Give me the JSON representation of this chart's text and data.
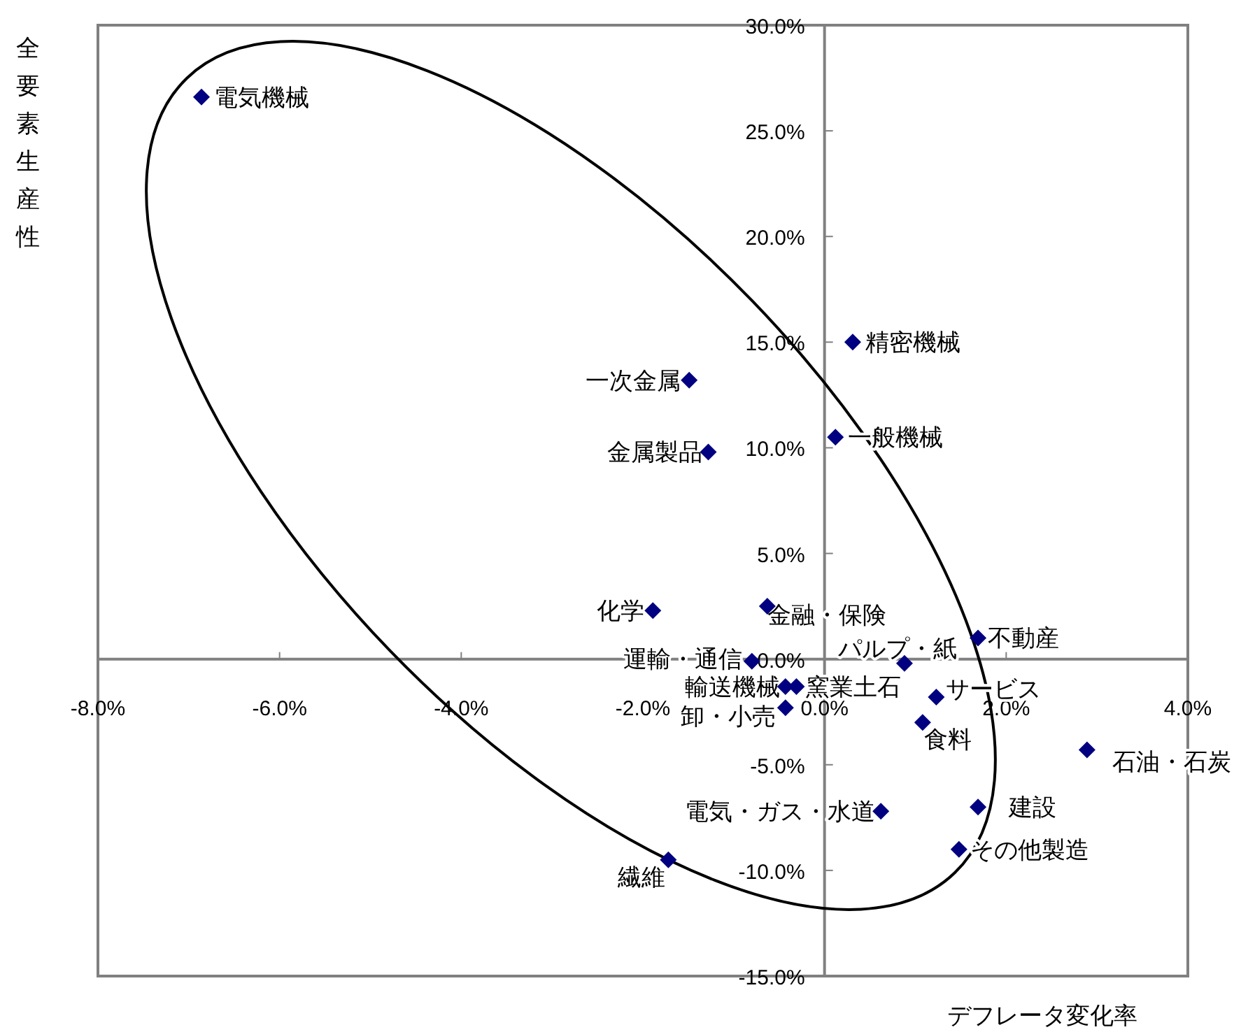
{
  "chart_data": {
    "type": "scatter",
    "xlabel": "デフレータ変化率",
    "ylabel": "全要素生産性",
    "xlim": [
      -8,
      4
    ],
    "ylim": [
      -15,
      30
    ],
    "xticks": [
      {
        "value": -8,
        "label": "-8.0%"
      },
      {
        "value": -6,
        "label": "-6.0%"
      },
      {
        "value": -4,
        "label": "-4.0%"
      },
      {
        "value": -2,
        "label": "-2.0%"
      },
      {
        "value": 0,
        "label": "0.0%"
      },
      {
        "value": 2,
        "label": "2.0%"
      },
      {
        "value": 4,
        "label": "4.0%"
      }
    ],
    "yticks": [
      {
        "value": -15,
        "label": "-15.0%"
      },
      {
        "value": -10,
        "label": "-10.0%"
      },
      {
        "value": -5,
        "label": "-5.0%"
      },
      {
        "value": 0,
        "label": "0.0%"
      },
      {
        "value": 5,
        "label": "5.0%"
      },
      {
        "value": 10,
        "label": "10.0%"
      },
      {
        "value": 15,
        "label": "15.0%"
      },
      {
        "value": 20,
        "label": "20.0%"
      },
      {
        "value": 25,
        "label": "25.0%"
      },
      {
        "value": 30,
        "label": "30.0%"
      }
    ],
    "marker": "diamond",
    "grid": false,
    "series": [
      {
        "color": "#000080",
        "x": [
          -6.86,
          -1.49,
          -1.28,
          0.31,
          0.12,
          -1.89,
          -0.63,
          1.69,
          -0.8,
          0.88,
          -0.43,
          -0.31,
          -0.43,
          1.23,
          1.08,
          2.89,
          0.62,
          1.69,
          1.48,
          -1.72
        ],
        "values": [
          26.6,
          13.2,
          9.8,
          15.0,
          10.5,
          2.3,
          2.5,
          1.0,
          -0.1,
          -0.2,
          -1.3,
          -1.3,
          -2.3,
          -1.8,
          -3.0,
          -4.3,
          -7.2,
          -7.0,
          -9.0,
          -9.5
        ]
      }
    ],
    "annotations": [
      {
        "text": "電気機械",
        "x": -6.86,
        "y": 26.6
      },
      {
        "text": "一次金属",
        "x": -1.49,
        "y": 13.2
      },
      {
        "text": "金属製品",
        "x": -1.28,
        "y": 9.8
      },
      {
        "text": "精密機械",
        "x": 0.31,
        "y": 15.0
      },
      {
        "text": "一般機械",
        "x": 0.12,
        "y": 10.5
      },
      {
        "text": "化学",
        "x": -1.89,
        "y": 2.3
      },
      {
        "text": "金融・保険",
        "x": -0.63,
        "y": 2.5
      },
      {
        "text": "不動産",
        "x": 1.69,
        "y": 1.0
      },
      {
        "text": "運輸・通信",
        "x": -0.8,
        "y": -0.1
      },
      {
        "text": "パルプ・紙",
        "x": 0.88,
        "y": -0.2
      },
      {
        "text": "輸送機械",
        "x": -0.43,
        "y": -1.3
      },
      {
        "text": "窯業土石",
        "x": -0.31,
        "y": -1.3
      },
      {
        "text": "卸・小売",
        "x": -0.43,
        "y": -2.3
      },
      {
        "text": "サービス",
        "x": 1.23,
        "y": -1.8
      },
      {
        "text": "食料",
        "x": 1.08,
        "y": -3.0
      },
      {
        "text": "石油・石炭",
        "x": 2.89,
        "y": -4.3
      },
      {
        "text": "電気・ガス・水道",
        "x": 0.62,
        "y": -7.2
      },
      {
        "text": "建設",
        "x": 1.69,
        "y": -7.0
      },
      {
        "text": "その他製造",
        "x": 1.48,
        "y": -9.0
      },
      {
        "text": "繊維",
        "x": -1.72,
        "y": -9.5
      }
    ]
  }
}
